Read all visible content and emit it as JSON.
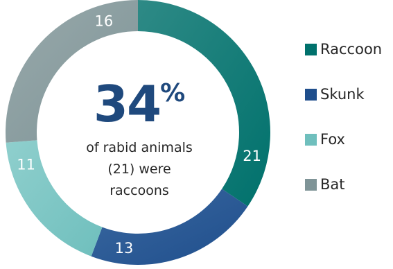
{
  "chart_data": {
    "type": "pie",
    "donut": true,
    "categories": [
      "Raccoon",
      "Skunk",
      "Fox",
      "Bat"
    ],
    "values": [
      21,
      13,
      11,
      16
    ],
    "colors": [
      "#00716c",
      "#1f4e8c",
      "#6fbfbd",
      "#7f9497"
    ],
    "gradient_light": [
      "#2e8a86",
      "#3a68a0",
      "#8fcfcd",
      "#98a9ab"
    ],
    "legend_position": "right",
    "center_text": {
      "number": "34",
      "percent_sign": "%",
      "caption_lines": [
        "of rabid animals",
        "(21) were",
        "raccoons"
      ]
    }
  }
}
